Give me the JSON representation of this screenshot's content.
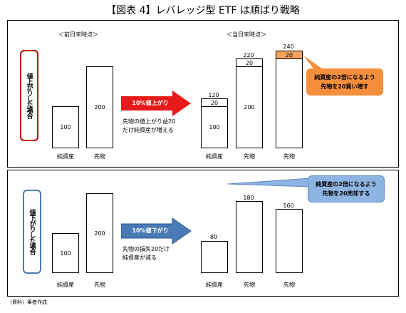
{
  "title": "【図表 4】レバレッジ型 ETF は順ばり戦略",
  "headers": {
    "before": "＜前日末時点＞",
    "after": "＜当日末時点＞"
  },
  "labels": {
    "net_assets": "純資産",
    "futures": "先物"
  },
  "source": "（資料）筆者作成",
  "up": {
    "scenario": "値上がりした場合",
    "before": {
      "net_assets": "100",
      "futures": "200"
    },
    "arrow": "10%値上がり",
    "note": [
      "先物の値上がり益20",
      "だけ純資産が増える"
    ],
    "after": {
      "net_total": "120",
      "net_gain": "20",
      "net_base": "100",
      "fut_total": "220",
      "fut_gain": "20",
      "fut_base": "200",
      "fut2_total": "240",
      "fut2_add": "20"
    },
    "callout": [
      "純資産の2倍になるよう",
      "先物を20買い増す"
    ],
    "colors": {
      "arrow": "#e8191a",
      "callout": "#f58f3c",
      "added_block": "#f4a35a"
    }
  },
  "down": {
    "scenario": "値下がりした場合",
    "before": {
      "net_assets": "100",
      "futures": "200"
    },
    "arrow": "10%値下がり",
    "note": [
      "先物の損失20だけ",
      "純資産が減る"
    ],
    "after": {
      "net_total": "80",
      "fut_total": "180",
      "fut2_total": "160"
    },
    "callout": [
      "純資産の2倍になるよう",
      "先物を20売却する"
    ],
    "colors": {
      "arrow": "#4a7ab5",
      "callout": "#8db4e2"
    }
  }
}
